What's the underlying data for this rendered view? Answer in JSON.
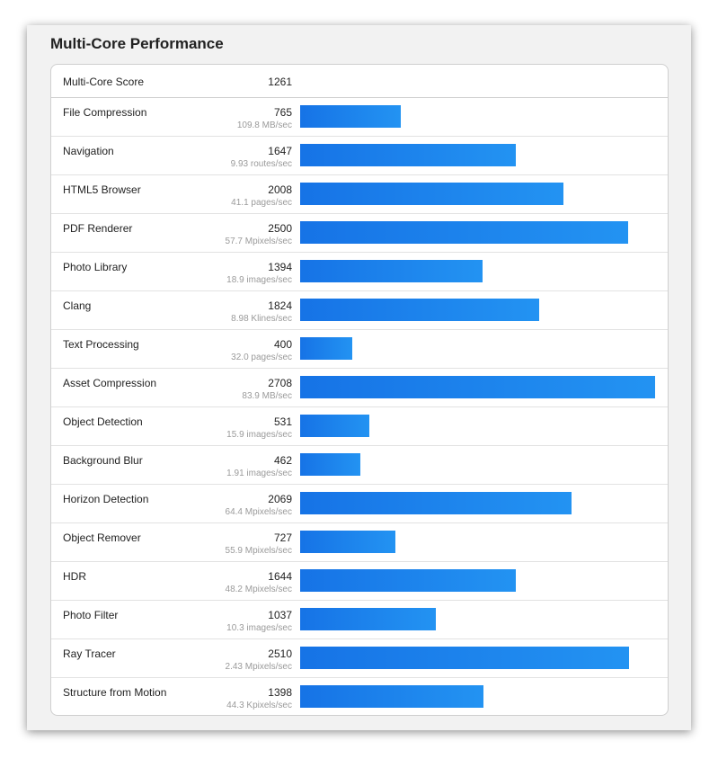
{
  "title": "Multi-Core Performance",
  "multi_core_score": {
    "label": "Multi-Core Score",
    "value": "1261"
  },
  "bar_color": "#1a7ff0",
  "max_score": 2708,
  "benchmarks": [
    {
      "name": "File Compression",
      "score": 765,
      "unit": "109.8 MB/sec"
    },
    {
      "name": "Navigation",
      "score": 1647,
      "unit": "9.93 routes/sec"
    },
    {
      "name": "HTML5 Browser",
      "score": 2008,
      "unit": "41.1 pages/sec"
    },
    {
      "name": "PDF Renderer",
      "score": 2500,
      "unit": "57.7 Mpixels/sec"
    },
    {
      "name": "Photo Library",
      "score": 1394,
      "unit": "18.9 images/sec"
    },
    {
      "name": "Clang",
      "score": 1824,
      "unit": "8.98 Klines/sec"
    },
    {
      "name": "Text Processing",
      "score": 400,
      "unit": "32.0 pages/sec"
    },
    {
      "name": "Asset Compression",
      "score": 2708,
      "unit": "83.9 MB/sec"
    },
    {
      "name": "Object Detection",
      "score": 531,
      "unit": "15.9 images/sec"
    },
    {
      "name": "Background Blur",
      "score": 462,
      "unit": "1.91 images/sec"
    },
    {
      "name": "Horizon Detection",
      "score": 2069,
      "unit": "64.4 Mpixels/sec"
    },
    {
      "name": "Object Remover",
      "score": 727,
      "unit": "55.9 Mpixels/sec"
    },
    {
      "name": "HDR",
      "score": 1644,
      "unit": "48.2 Mpixels/sec"
    },
    {
      "name": "Photo Filter",
      "score": 1037,
      "unit": "10.3 images/sec"
    },
    {
      "name": "Ray Tracer",
      "score": 2510,
      "unit": "2.43 Mpixels/sec"
    },
    {
      "name": "Structure from Motion",
      "score": 1398,
      "unit": "44.3 Kpixels/sec"
    }
  ]
}
